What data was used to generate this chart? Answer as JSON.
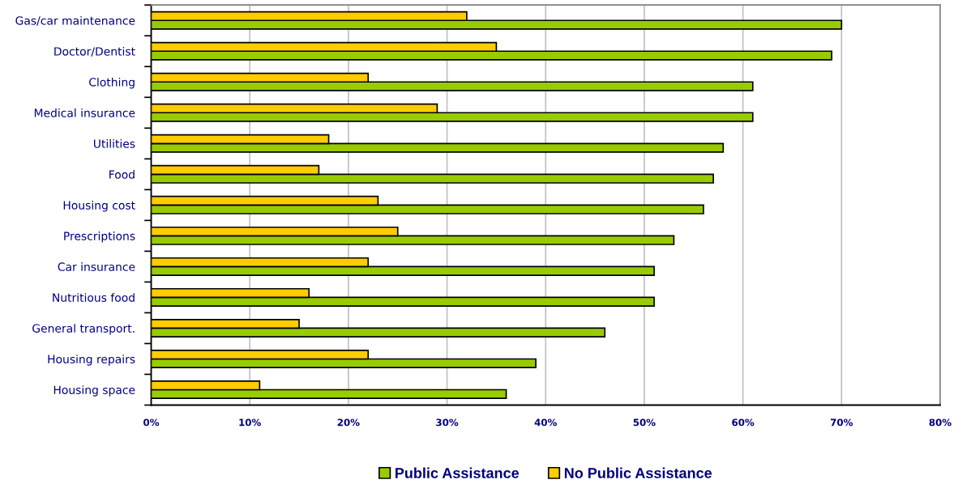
{
  "chart_data": {
    "type": "bar",
    "orientation": "horizontal",
    "categories": [
      "Gas/car maintenance",
      "Doctor/Dentist",
      "Clothing",
      "Medical insurance",
      "Utilities",
      "Food",
      "Housing cost",
      "Prescriptions",
      "Car insurance",
      "Nutritious food",
      "General transport.",
      "Housing repairs",
      "Housing space"
    ],
    "series": [
      {
        "name": "Public Assistance",
        "color": "#99cc00",
        "values": [
          70,
          69,
          61,
          61,
          58,
          57,
          56,
          53,
          51,
          51,
          46,
          39,
          36
        ]
      },
      {
        "name": "No Public Assistance",
        "color": "#ffcc00",
        "values": [
          32,
          35,
          22,
          29,
          18,
          17,
          23,
          25,
          22,
          16,
          15,
          22,
          11
        ]
      }
    ],
    "xlim": [
      0,
      80
    ],
    "xticks": [
      {
        "value": 0,
        "label": "0%"
      },
      {
        "value": 10,
        "label": "10%"
      },
      {
        "value": 20,
        "label": "20%"
      },
      {
        "value": 30,
        "label": "30%"
      },
      {
        "value": 40,
        "label": "40%"
      },
      {
        "value": 50,
        "label": "50%"
      },
      {
        "value": 60,
        "label": "60%"
      },
      {
        "value": 70,
        "label": "70%"
      },
      {
        "value": 80,
        "label": "80%"
      }
    ],
    "grid": "x",
    "legend": "bottom"
  }
}
